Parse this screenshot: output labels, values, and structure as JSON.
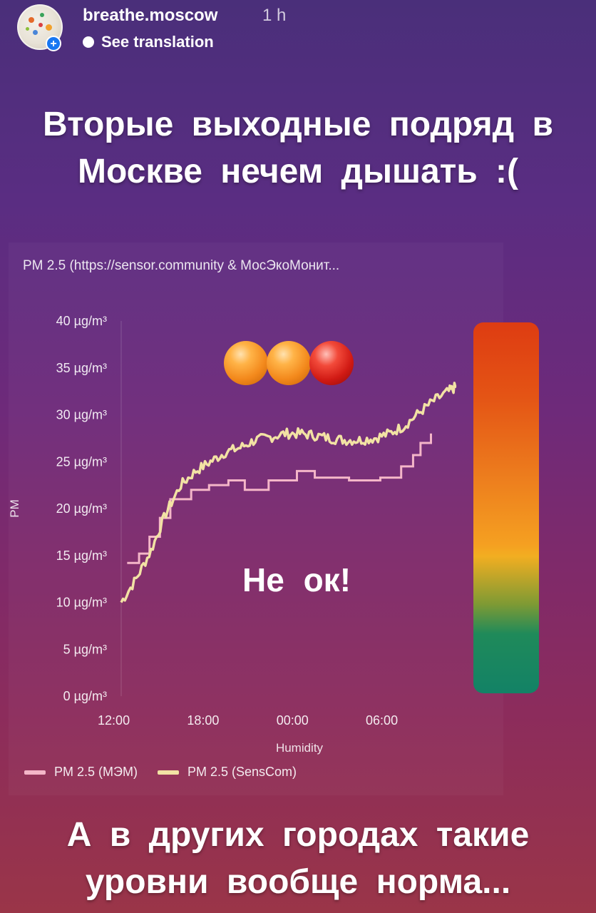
{
  "header": {
    "username": "breathe.moscow",
    "time": "1 h",
    "translate_label": "See translation",
    "avatar_icon": "avatar-icon",
    "add_icon": "plus-icon"
  },
  "headline_top": {
    "line1": "Вторые выходные подряд в",
    "line2": "Москве нечем дышать :("
  },
  "headline_bottom": {
    "line1": "А в других городах такие",
    "line2": "уровни вообще норма..."
  },
  "sticker": {
    "text": "Не ок!",
    "balls": [
      "orange",
      "orange",
      "red"
    ],
    "colors": {
      "orange": "#f3891c",
      "red": "#d11a14"
    }
  },
  "chart_data": {
    "type": "line",
    "title": "PM 2.5 (https://sensor.community & МосЭкоМонит...",
    "ylabel": "PM",
    "xlabel": "Humidity",
    "ylim": [
      0,
      40
    ],
    "yticks": [
      "0 µg/m³",
      "5 µg/m³",
      "10 µg/m³",
      "15 µg/m³",
      "20 µg/m³",
      "25 µg/m³",
      "30 µg/m³",
      "35 µg/m³",
      "40 µg/m³"
    ],
    "ytick_values": [
      0,
      5,
      10,
      15,
      20,
      25,
      30,
      35,
      40
    ],
    "xticks": [
      "12:00",
      "18:00",
      "00:00",
      "06:00"
    ],
    "xtick_hours": [
      12,
      18,
      24,
      30
    ],
    "x_unit": "hours",
    "xlim": [
      12.5,
      35
    ],
    "series": [
      {
        "name": "PM 2.5 (МЭМ)",
        "color": "#f4b6c8",
        "style": "step",
        "x": [
          12.9,
          13.7,
          14.4,
          15.1,
          15.8,
          17.2,
          18.4,
          19.7,
          20.8,
          22.4,
          24.3,
          25.5,
          27.8,
          29.9,
          31.3,
          32.1,
          32.6,
          33.3
        ],
        "values": [
          14.2,
          15.2,
          17.0,
          19.0,
          21.0,
          22.0,
          22.5,
          23.0,
          22.0,
          23.0,
          24.0,
          23.3,
          23.0,
          23.3,
          24.5,
          25.7,
          27.0,
          28.0
        ]
      },
      {
        "name": "PM 2.5 (SensCom)",
        "color": "#f2e2a4",
        "style": "noisy",
        "x": [
          12.5,
          13.5,
          14.5,
          15.5,
          16.5,
          17.5,
          18.5,
          19.5,
          20.5,
          21.5,
          22.5,
          23.5,
          24.5,
          25.5,
          26.5,
          27.5,
          28.5,
          29.5,
          30.5,
          31.5,
          32.5,
          33.5,
          34.5,
          35.0
        ],
        "values": [
          10.0,
          12.5,
          15.5,
          19.5,
          22.5,
          24.0,
          25.0,
          26.0,
          26.5,
          27.3,
          27.6,
          28.0,
          28.0,
          27.8,
          27.5,
          27.3,
          27.3,
          27.5,
          28.0,
          28.8,
          30.2,
          31.5,
          32.5,
          33.0
        ]
      }
    ],
    "legend_position": "bottom-left",
    "grid": false,
    "colorbar": {
      "gradient": [
        "#de3c12",
        "#ec7a1d",
        "#f5a021",
        "#7e9a34",
        "#1f8a5a",
        "#138266"
      ]
    }
  }
}
